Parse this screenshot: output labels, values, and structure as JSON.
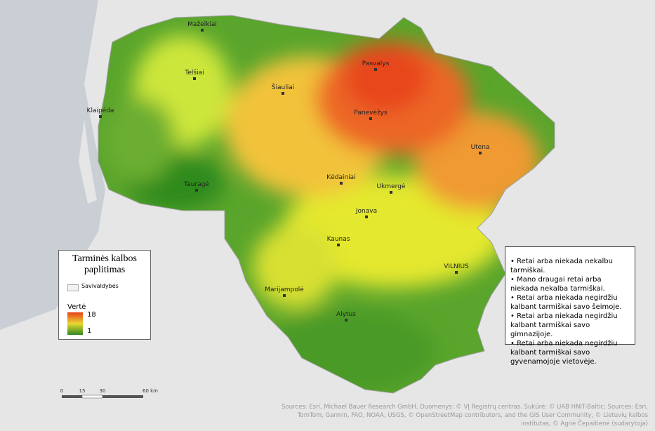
{
  "title": "Tarminės kalbos paplitimas",
  "legend": {
    "boundary_label": "Savivaldybės",
    "value_title": "Vertė",
    "max": 18,
    "min": 1
  },
  "cities": [
    "Mažeikiai",
    "Telšiai",
    "Šiauliai",
    "Pasvalys",
    "Panevėžys",
    "Klaipėda",
    "Utena",
    "Kėdainiai",
    "Ukmergė",
    "Tauragė",
    "Jonava",
    "Kaunas",
    "VILNIUS",
    "Marijampolė",
    "Alytus"
  ],
  "notes": [
    "• Retai arba niekada nekalbu tarmiškai.",
    "• Mano draugai retai arba niekada nekalba tarmiškai.",
    "• Retai arba niekada negirdžiu kalbant tarmiškai savo šeimoje.",
    "• Retai arba niekada negirdžiu kalbant tarmiškai savo gimnazijoje.",
    "• Retai arba niekada negirdžiu kalbant tarmiškai savo gyvenamojoje vietovėje."
  ],
  "scale_bar": [
    "0",
    "15",
    "30",
    "60 km"
  ],
  "sources": "Sources: Esri, Michael Bauer Research GmbH, Duomenys: © VĮ Registrų centras. Sukūrė: © UAB HNIT-Baltic; Sources: Esri, TomTom, Garmin, FAO, NOAA, USGS, © OpenStreetMap contributors, and the GIS User Community, © Lietuvių kalbos institutas, © Agnė Čepaitienė (sudarytoja)"
}
